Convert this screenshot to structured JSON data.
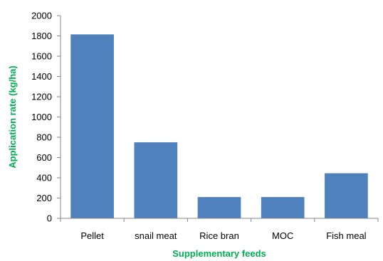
{
  "chart_data": {
    "type": "bar",
    "title": "",
    "xlabel": "Supplementary feeds",
    "ylabel": "Application rate (kg/ha)",
    "categories": [
      "Pellet",
      "snail meat",
      "Rice bran",
      "MOC",
      "Fish meal"
    ],
    "values": [
      1815,
      750,
      210,
      210,
      445
    ],
    "ylim": [
      0,
      2000
    ],
    "yticks": [
      0,
      200,
      400,
      600,
      800,
      1000,
      1200,
      1400,
      1600,
      1800,
      2000
    ],
    "grid": false,
    "legend": "none",
    "bar_color": "#4F81BD",
    "axis_title_color": "#00B050",
    "axis_line_color": "#868686"
  }
}
